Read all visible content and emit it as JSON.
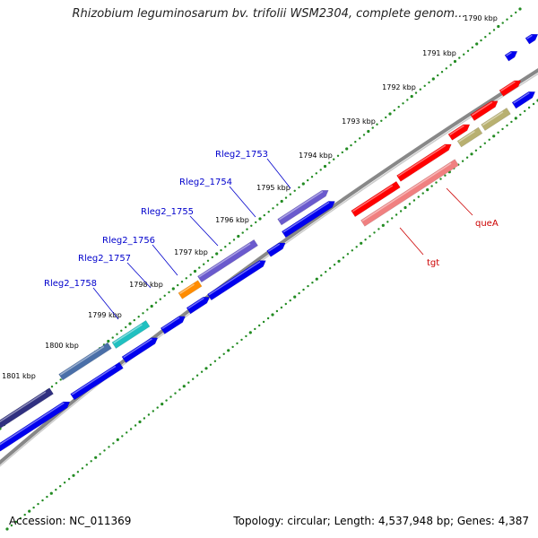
{
  "title": "Rhizobium leguminosarum bv. trifolii WSM2304, complete genom...",
  "footer": {
    "accession": "Accession: NC_011369",
    "stats": "Topology: circular; Length: 4,537,948 bp; Genes: 4,387"
  },
  "ticks": [
    "1790 kbp",
    "1791 kbp",
    "1792 kbp",
    "1793 kbp",
    "1794 kbp",
    "1795 kbp",
    "1796 kbp",
    "1797 kbp",
    "1798 kbp",
    "1799 kbp",
    "1800 kbp",
    "1801 kbp"
  ],
  "gene_labels": [
    "Rleg2_1753",
    "Rleg2_1754",
    "Rleg2_1755",
    "Rleg2_1756",
    "Rleg2_1757",
    "Rleg2_1758"
  ],
  "rna_labels": [
    "queA",
    "tgt"
  ],
  "colors": {
    "cds_blue": "#0000ee",
    "highlight_red": "#ff0000",
    "highlight_pink": "#f08080",
    "olive": "#b8b070",
    "slate": "#6a5acd",
    "teal": "#20c0c0",
    "orange": "#ff8c00",
    "navy": "#303080",
    "tick_green": "#228b22",
    "backbone": "#808080"
  }
}
